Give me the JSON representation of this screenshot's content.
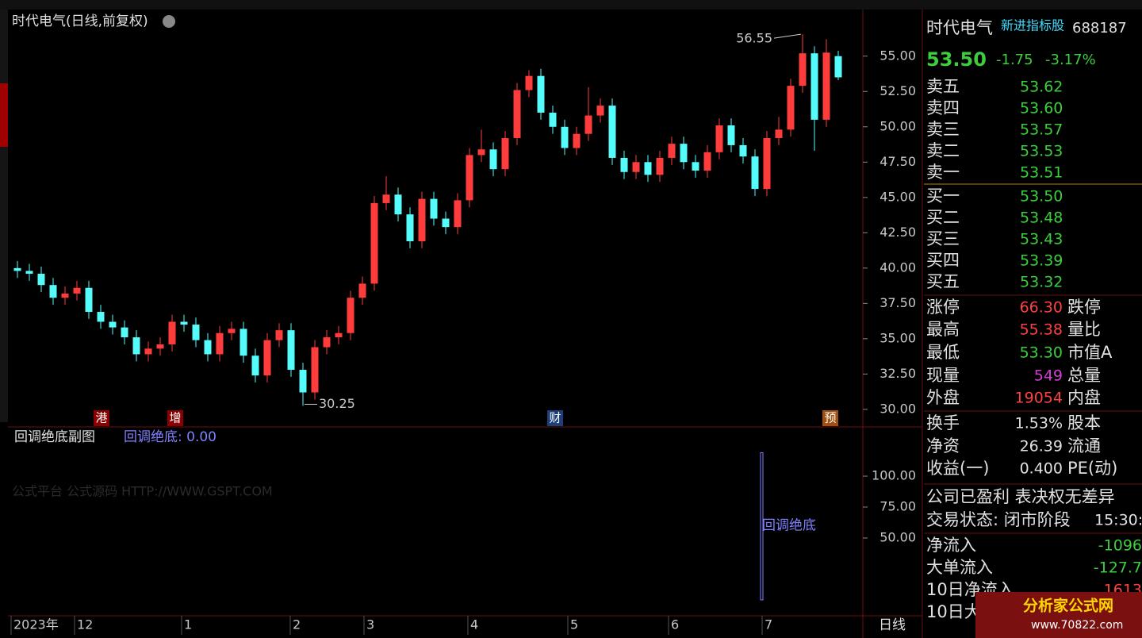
{
  "chart_data": [
    {
      "type": "candlestick",
      "title": "时代电气(日线,前复权)",
      "open": [
        40.0,
        39.8,
        39.6,
        38.8,
        37.9,
        38.2,
        38.6,
        36.9,
        36.2,
        35.8,
        35.1,
        33.9,
        34.3,
        34.6,
        36.2,
        36.0,
        34.9,
        33.9,
        35.4,
        35.7,
        33.8,
        32.4,
        34.9,
        35.6,
        32.8,
        31.2,
        34.4,
        35.1,
        35.4,
        37.9,
        38.9,
        44.6,
        45.2,
        43.8,
        41.9,
        44.9,
        43.5,
        42.9,
        44.8,
        48.0,
        48.4,
        47.0,
        49.2,
        52.6,
        53.6,
        51.0,
        50.0,
        48.5,
        49.5,
        50.8,
        51.5,
        47.8,
        46.8,
        47.5,
        46.6,
        47.8,
        48.8,
        47.5,
        46.9,
        48.2,
        50.1,
        48.7,
        47.9,
        45.6,
        49.2,
        49.8,
        52.9,
        55.2,
        50.5,
        55.0
      ],
      "high": [
        40.5,
        40.3,
        40.1,
        39.3,
        38.7,
        39.1,
        39.1,
        37.4,
        36.7,
        36.3,
        35.6,
        34.8,
        35.1,
        36.7,
        36.7,
        36.5,
        35.4,
        35.9,
        36.2,
        36.2,
        34.3,
        35.4,
        36.1,
        36.1,
        33.3,
        34.9,
        35.6,
        35.9,
        38.4,
        39.4,
        45.1,
        46.5,
        45.7,
        44.3,
        45.4,
        45.4,
        44.0,
        45.3,
        48.5,
        49.8,
        48.9,
        49.7,
        53.1,
        54.0,
        54.1,
        51.5,
        50.5,
        50.0,
        52.8,
        52.0,
        52.0,
        48.3,
        48.0,
        48.0,
        48.3,
        49.3,
        49.3,
        48.0,
        48.7,
        50.6,
        50.6,
        49.2,
        48.4,
        49.7,
        50.7,
        53.4,
        56.55,
        55.7,
        56.2,
        55.38
      ],
      "low": [
        39.3,
        39.1,
        38.3,
        37.4,
        37.4,
        37.7,
        36.4,
        35.7,
        35.3,
        34.6,
        33.4,
        33.4,
        33.8,
        34.1,
        35.5,
        34.4,
        33.4,
        33.4,
        34.9,
        33.3,
        31.9,
        31.9,
        34.4,
        32.3,
        30.25,
        30.7,
        33.9,
        34.6,
        34.9,
        37.4,
        38.4,
        44.1,
        43.3,
        41.4,
        41.4,
        43.0,
        42.4,
        42.4,
        44.3,
        47.5,
        46.5,
        46.5,
        48.7,
        52.1,
        50.5,
        49.5,
        48.0,
        48.0,
        49.0,
        50.3,
        47.3,
        46.3,
        46.3,
        46.1,
        46.1,
        47.3,
        47.0,
        46.4,
        46.4,
        47.7,
        48.2,
        47.4,
        45.1,
        45.1,
        48.7,
        49.3,
        52.4,
        48.3,
        50.0,
        53.3
      ],
      "close": [
        39.8,
        39.6,
        38.8,
        37.9,
        38.2,
        38.6,
        36.9,
        36.2,
        35.8,
        35.1,
        33.9,
        34.3,
        34.6,
        36.2,
        36.0,
        34.9,
        33.9,
        35.4,
        35.7,
        33.8,
        32.4,
        34.9,
        35.6,
        32.8,
        31.2,
        34.4,
        35.1,
        35.4,
        37.9,
        38.9,
        44.6,
        45.2,
        43.8,
        41.9,
        44.9,
        43.5,
        42.9,
        44.8,
        48.0,
        48.4,
        47.0,
        49.2,
        52.6,
        53.6,
        51.0,
        50.0,
        48.5,
        49.5,
        50.8,
        51.5,
        47.8,
        46.8,
        47.5,
        46.6,
        47.8,
        48.8,
        47.5,
        46.9,
        48.2,
        50.1,
        48.7,
        47.9,
        45.6,
        49.2,
        49.8,
        52.9,
        55.2,
        50.5,
        55.25,
        53.5
      ],
      "up_color": "#ff3c3c",
      "down_color": "#54fcfc",
      "ylim": [
        29.6,
        58.3
      ],
      "yticks": [
        {
          "value": 30,
          "label": "30.00"
        },
        {
          "value": 32.5,
          "label": "32.50"
        },
        {
          "value": 35,
          "label": "35.00"
        },
        {
          "value": 37.5,
          "label": "37.50"
        },
        {
          "value": 40,
          "label": "40.00"
        },
        {
          "value": 42.5,
          "label": "42.50"
        },
        {
          "value": 45,
          "label": "45.00"
        },
        {
          "value": 47.5,
          "label": "47.50"
        },
        {
          "value": 50,
          "label": "50.00"
        },
        {
          "value": 52.5,
          "label": "52.50"
        },
        {
          "value": 55,
          "label": "55.00"
        }
      ],
      "xlabels": [
        "2023年",
        "12",
        "1",
        "2",
        "3",
        "4",
        "5",
        "6",
        "7"
      ],
      "period": "日线",
      "events": [
        "港",
        "增",
        "财",
        "预"
      ]
    },
    {
      "type": "bar",
      "title": "回调绝底副图",
      "legend": "回调绝底: 0.00",
      "name": "回调绝底",
      "color": "#8080ff",
      "values": [
        0,
        0,
        0,
        0,
        0,
        0,
        0,
        0,
        0,
        0,
        0,
        0,
        0,
        0,
        0,
        0,
        0,
        0,
        0,
        0,
        0,
        0,
        0,
        0,
        0,
        0,
        0,
        0,
        0,
        0,
        0,
        0,
        0,
        0,
        0,
        0,
        0,
        0,
        0,
        0,
        0,
        0,
        0,
        0,
        0,
        0,
        0,
        0,
        0,
        0,
        0,
        0,
        0,
        0,
        0,
        0,
        0,
        0,
        0,
        0,
        0,
        0,
        0,
        119,
        0,
        0,
        0,
        0,
        0,
        0
      ],
      "ylim": [
        -10.3,
        135.3
      ],
      "yticks": [
        {
          "value": 100,
          "label": "100.00"
        },
        {
          "value": 75,
          "label": "75.00"
        },
        {
          "value": 50,
          "label": "50.00"
        }
      ]
    }
  ],
  "watermark": "公式平台 公式源码 HTTP://WWW.GSPT.COM",
  "site": {
    "name": "分析家公式网",
    "url": "www.70822.com"
  },
  "quote": {
    "name": "时代电气",
    "tag": "新进指标股",
    "code": "688187",
    "price": "53.50",
    "change": "-1.75",
    "pct": "-3.17%",
    "asks": [
      [
        "卖五",
        "53.62"
      ],
      [
        "卖四",
        "53.60"
      ],
      [
        "卖三",
        "53.57"
      ],
      [
        "卖二",
        "53.53"
      ],
      [
        "卖一",
        "53.51"
      ]
    ],
    "bids": [
      [
        "买一",
        "53.50"
      ],
      [
        "买二",
        "53.48"
      ],
      [
        "买三",
        "53.43"
      ],
      [
        "买四",
        "53.39"
      ],
      [
        "买五",
        "53.32"
      ]
    ],
    "stats": [
      [
        "涨停",
        "66.30",
        "跌停"
      ],
      [
        "最高",
        "55.38",
        "量比"
      ],
      [
        "最低",
        "53.30",
        "市值A"
      ],
      [
        "现量",
        "549",
        "总量"
      ],
      [
        "外盘",
        "19054",
        "内盘"
      ],
      [
        "换手",
        "1.53%",
        "股本"
      ],
      [
        "净资",
        "26.39",
        "流通"
      ],
      [
        "收益(一)",
        "0.400",
        "PE(动)"
      ]
    ],
    "note": "公司已盈利 表决权无差异",
    "status": "交易状态: 闭市阶段",
    "time": "15:30:",
    "flows": [
      [
        "净流入",
        "-1096"
      ],
      [
        "大单流入",
        "-127.7"
      ],
      [
        "10日净流入",
        "1613"
      ],
      [
        "10日大单",
        ""
      ]
    ]
  }
}
